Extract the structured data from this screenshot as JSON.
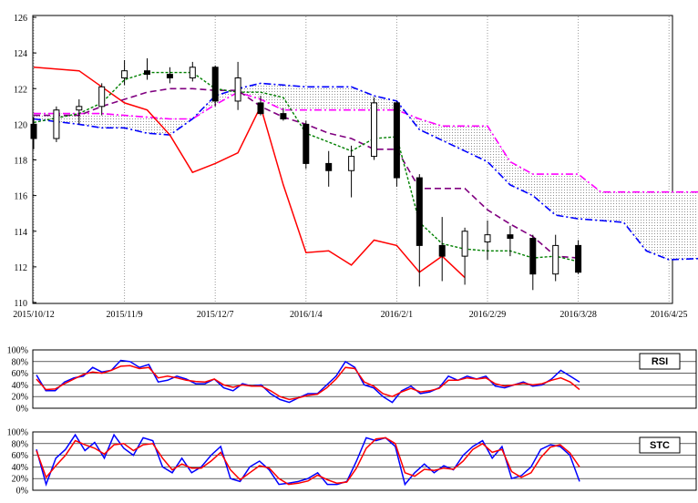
{
  "chart_data": [
    {
      "type": "candlestick",
      "title": "",
      "xlabel": "",
      "ylabel": "",
      "ylim": [
        110,
        126
      ],
      "y_ticks": [
        "126",
        "124",
        "122",
        "120",
        "118",
        "116",
        "114",
        "112",
        "110"
      ],
      "x_tick_labels": [
        "2015/10/12",
        "2015/11/9",
        "2015/12/7",
        "2016/1/4",
        "2016/2/1",
        "2016/2/29",
        "2016/3/28",
        "2016/4/25"
      ],
      "grid": "vertical-dotted",
      "ohlc_weekly_approx": [
        {
          "date": "2015/10/12",
          "open": 120.0,
          "high": 120.4,
          "low": 118.6,
          "close": 119.2
        },
        {
          "date": "2015/10/19",
          "open": 119.2,
          "high": 121.0,
          "low": 119.0,
          "close": 120.8
        },
        {
          "date": "2015/10/26",
          "open": 120.8,
          "high": 121.4,
          "low": 120.0,
          "close": 121.0
        },
        {
          "date": "2015/11/2",
          "open": 121.0,
          "high": 122.3,
          "low": 120.5,
          "close": 122.1
        },
        {
          "date": "2015/11/9",
          "open": 122.6,
          "high": 123.6,
          "low": 122.2,
          "close": 123.0
        },
        {
          "date": "2015/11/16",
          "open": 123.0,
          "high": 123.7,
          "low": 122.5,
          "close": 122.8
        },
        {
          "date": "2015/11/23",
          "open": 122.8,
          "high": 123.2,
          "low": 122.3,
          "close": 122.6
        },
        {
          "date": "2015/11/30",
          "open": 122.6,
          "high": 123.5,
          "low": 122.4,
          "close": 123.2
        },
        {
          "date": "2015/12/7",
          "open": 123.2,
          "high": 123.3,
          "low": 121.0,
          "close": 121.3
        },
        {
          "date": "2015/12/14",
          "open": 121.3,
          "high": 123.5,
          "low": 120.8,
          "close": 122.6
        },
        {
          "date": "2015/12/21",
          "open": 121.2,
          "high": 121.6,
          "low": 120.5,
          "close": 120.6
        },
        {
          "date": "2015/12/28",
          "open": 120.6,
          "high": 120.9,
          "low": 120.2,
          "close": 120.3
        },
        {
          "date": "2016/1/4",
          "open": 120.0,
          "high": 120.2,
          "low": 117.5,
          "close": 117.8
        },
        {
          "date": "2016/1/11",
          "open": 117.8,
          "high": 118.5,
          "low": 116.5,
          "close": 117.4
        },
        {
          "date": "2016/1/18",
          "open": 117.4,
          "high": 118.8,
          "low": 115.9,
          "close": 118.2
        },
        {
          "date": "2016/1/25",
          "open": 118.2,
          "high": 121.5,
          "low": 118.0,
          "close": 121.2
        },
        {
          "date": "2016/2/1",
          "open": 121.2,
          "high": 121.3,
          "low": 116.5,
          "close": 117.0
        },
        {
          "date": "2016/2/8",
          "open": 117.0,
          "high": 117.2,
          "low": 110.9,
          "close": 113.2
        },
        {
          "date": "2016/2/15",
          "open": 113.2,
          "high": 114.8,
          "low": 111.2,
          "close": 112.6
        },
        {
          "date": "2016/2/22",
          "open": 112.6,
          "high": 114.2,
          "low": 111.0,
          "close": 114.0
        },
        {
          "date": "2016/2/29",
          "open": 113.4,
          "high": 114.6,
          "low": 112.4,
          "close": 113.8
        },
        {
          "date": "2016/3/7",
          "open": 113.8,
          "high": 114.3,
          "low": 112.6,
          "close": 113.6
        },
        {
          "date": "2016/3/14",
          "open": 113.6,
          "high": 113.8,
          "low": 110.7,
          "close": 111.6
        },
        {
          "date": "2016/3/21",
          "open": 111.6,
          "high": 113.8,
          "low": 111.2,
          "close": 113.2
        },
        {
          "date": "2016/3/28",
          "open": 113.2,
          "high": 113.5,
          "low": 111.6,
          "close": 111.7
        }
      ],
      "series": [
        {
          "kind": "tenkan",
          "color": "#008000",
          "points": [
            [
              0,
              120.1
            ],
            [
              2,
              120.6
            ],
            [
              3,
              121.2
            ],
            [
              4,
              122.5
            ],
            [
              5,
              122.9
            ],
            [
              6,
              122.9
            ],
            [
              7,
              122.9
            ],
            [
              8,
              122.0
            ],
            [
              9,
              121.8
            ],
            [
              10,
              121.8
            ],
            [
              11,
              121.5
            ],
            [
              12,
              119.5
            ],
            [
              13,
              119.0
            ],
            [
              14,
              118.5
            ],
            [
              15,
              119.2
            ],
            [
              16,
              119.3
            ],
            [
              17,
              114.5
            ],
            [
              18,
              113.3
            ],
            [
              19,
              113.0
            ],
            [
              20,
              112.9
            ],
            [
              21,
              112.9
            ],
            [
              22,
              112.5
            ],
            [
              23,
              112.6
            ],
            [
              24,
              112.3
            ]
          ]
        },
        {
          "kind": "kijun",
          "color": "#800080",
          "points": [
            [
              0,
              120.5
            ],
            [
              1,
              120.5
            ],
            [
              2,
              120.5
            ],
            [
              3,
              121.0
            ],
            [
              4,
              121.4
            ],
            [
              5,
              121.8
            ],
            [
              6,
              122.0
            ],
            [
              7,
              122.0
            ],
            [
              8,
              121.9
            ],
            [
              9,
              121.9
            ],
            [
              10,
              121.0
            ],
            [
              11,
              120.4
            ],
            [
              12,
              120.0
            ],
            [
              13,
              119.5
            ],
            [
              14,
              119.2
            ],
            [
              15,
              118.6
            ],
            [
              16,
              118.6
            ],
            [
              17,
              116.4
            ],
            [
              18,
              116.4
            ],
            [
              19,
              116.4
            ],
            [
              20,
              115.2
            ],
            [
              21,
              114.4
            ],
            [
              22,
              113.7
            ],
            [
              23,
              112.6
            ],
            [
              24,
              112.5
            ]
          ]
        },
        {
          "kind": "chikou",
          "color": "#ff0000",
          "points": [
            [
              0,
              123.2
            ],
            [
              1,
              123.1
            ],
            [
              2,
              123.0
            ],
            [
              3,
              122.1
            ],
            [
              4,
              121.2
            ],
            [
              5,
              120.8
            ],
            [
              6,
              119.4
            ],
            [
              7,
              117.3
            ],
            [
              8,
              117.8
            ],
            [
              9,
              118.4
            ],
            [
              10,
              121.0
            ],
            [
              11,
              116.6
            ],
            [
              12,
              112.8
            ],
            [
              13,
              112.9
            ],
            [
              14,
              112.1
            ],
            [
              15,
              113.5
            ],
            [
              16,
              113.2
            ],
            [
              17,
              111.7
            ],
            [
              18,
              112.6
            ],
            [
              19,
              111.4
            ]
          ]
        },
        {
          "kind": "span_a",
          "color": "#ff00ff",
          "points": [
            [
              0,
              120.6
            ],
            [
              3,
              120.6
            ],
            [
              4,
              120.5
            ],
            [
              6,
              120.3
            ],
            [
              7,
              120.3
            ],
            [
              8,
              121.1
            ],
            [
              9,
              121.8
            ],
            [
              10,
              121.4
            ],
            [
              11,
              120.8
            ],
            [
              12,
              120.8
            ],
            [
              13,
              120.8
            ],
            [
              14,
              120.8
            ],
            [
              15,
              120.8
            ],
            [
              16,
              120.8
            ],
            [
              17,
              120.3
            ],
            [
              18,
              119.9
            ],
            [
              19,
              119.9
            ],
            [
              20,
              119.9
            ],
            [
              21,
              117.9
            ],
            [
              22,
              117.2
            ],
            [
              23,
              117.2
            ],
            [
              24,
              117.2
            ],
            [
              25,
              116.2
            ],
            [
              28,
              116.2
            ],
            [
              30,
              116.2
            ]
          ]
        },
        {
          "kind": "span_b",
          "color": "#0000ff",
          "points": [
            [
              0,
              120.3
            ],
            [
              2,
              120.0
            ],
            [
              3,
              119.8
            ],
            [
              4,
              119.8
            ],
            [
              5,
              119.5
            ],
            [
              6,
              119.4
            ],
            [
              7,
              120.3
            ],
            [
              8,
              121.6
            ],
            [
              9,
              122.0
            ],
            [
              10,
              122.3
            ],
            [
              11,
              122.2
            ],
            [
              12,
              122.1
            ],
            [
              13,
              122.1
            ],
            [
              14,
              122.1
            ],
            [
              15,
              121.6
            ],
            [
              16,
              121.3
            ],
            [
              17,
              119.7
            ],
            [
              18,
              119.1
            ],
            [
              19,
              118.5
            ],
            [
              20,
              117.9
            ],
            [
              21,
              116.6
            ],
            [
              22,
              116.0
            ],
            [
              23,
              114.9
            ],
            [
              24,
              114.7
            ],
            [
              25,
              114.6
            ],
            [
              26,
              114.5
            ],
            [
              27,
              112.9
            ],
            [
              28,
              112.4
            ],
            [
              30,
              112.5
            ]
          ]
        }
      ]
    },
    {
      "type": "line",
      "name": "RSI",
      "ylim": [
        0,
        100
      ],
      "y_ticks": [
        "100%",
        "80%",
        "60%",
        "40%",
        "20%",
        "0%"
      ],
      "series": [
        {
          "color": "#0000ff",
          "values": [
            57,
            30,
            30,
            45,
            52,
            55,
            70,
            62,
            65,
            82,
            80,
            70,
            75,
            45,
            48,
            55,
            50,
            42,
            42,
            50,
            35,
            30,
            42,
            38,
            40,
            25,
            15,
            10,
            18,
            25,
            25,
            40,
            55,
            80,
            70,
            40,
            35,
            20,
            10,
            30,
            38,
            25,
            28,
            35,
            55,
            48,
            55,
            50,
            55,
            38,
            35,
            40,
            45,
            38,
            40,
            50,
            65,
            55,
            45
          ]
        },
        {
          "color": "#ff0000",
          "values": [
            50,
            32,
            33,
            42,
            50,
            58,
            62,
            60,
            65,
            72,
            73,
            68,
            70,
            52,
            55,
            52,
            48,
            46,
            45,
            50,
            40,
            36,
            40,
            38,
            38,
            30,
            20,
            15,
            18,
            22,
            24,
            35,
            50,
            70,
            68,
            45,
            38,
            25,
            20,
            28,
            34,
            28,
            30,
            34,
            48,
            48,
            52,
            50,
            52,
            42,
            38,
            40,
            43,
            40,
            42,
            48,
            52,
            45,
            32
          ]
        }
      ]
    },
    {
      "type": "line",
      "name": "STC",
      "ylim": [
        0,
        100
      ],
      "y_ticks": [
        "100%",
        "80%",
        "60%",
        "40%",
        "20%",
        "0%"
      ],
      "series": [
        {
          "color": "#0000ff",
          "values": [
            70,
            10,
            55,
            70,
            95,
            68,
            82,
            55,
            95,
            72,
            60,
            90,
            85,
            40,
            30,
            55,
            30,
            40,
            60,
            75,
            20,
            15,
            40,
            50,
            35,
            10,
            12,
            15,
            20,
            30,
            10,
            10,
            15,
            50,
            90,
            85,
            90,
            75,
            10,
            30,
            45,
            30,
            42,
            35,
            60,
            75,
            85,
            55,
            75,
            20,
            25,
            40,
            70,
            78,
            75,
            60,
            15
          ]
        },
        {
          "color": "#ff0000",
          "values": [
            68,
            22,
            42,
            60,
            85,
            78,
            72,
            62,
            78,
            80,
            68,
            78,
            80,
            55,
            35,
            45,
            38,
            38,
            50,
            65,
            35,
            18,
            30,
            42,
            38,
            20,
            10,
            12,
            16,
            26,
            18,
            12,
            14,
            38,
            72,
            88,
            90,
            80,
            30,
            24,
            36,
            34,
            38,
            36,
            50,
            70,
            80,
            65,
            70,
            32,
            22,
            30,
            56,
            74,
            78,
            64,
            40
          ]
        }
      ]
    }
  ],
  "panels": {
    "rsi_label": "RSI",
    "stc_label": "STC"
  }
}
